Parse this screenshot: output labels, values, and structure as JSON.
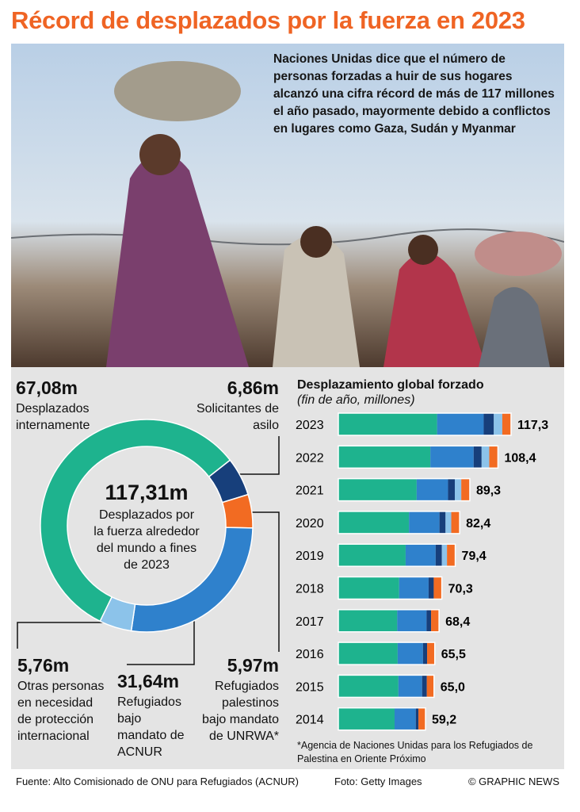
{
  "title": "Récord de desplazados por la fuerza en 2023",
  "intro": "Naciones Unidas dice que el número de personas forzadas a huir de sus hogares alcanzó una cifra récord de más de 117 millones el año pasado, mayormente debido a conflictos en lugares como Gaza, Sudán y Myanmar",
  "chart_data": [
    {
      "type": "donut",
      "center_label": "117,31m",
      "center_text": "Desplazados por la fuerza alrededor del mundo a fines de 2023",
      "categories": [
        "Desplazados internamente",
        "Solicitantes de asilo",
        "Refugiados palestinos bajo mandato de UNRWA*",
        "Refugiados bajo mandato de ACNUR",
        "Otras personas en necesidad de protección internacional"
      ],
      "values": [
        67.08,
        6.86,
        5.97,
        31.64,
        5.76
      ],
      "value_labels": [
        "67,08m",
        "6,86m",
        "5,97m",
        "31,64m",
        "5,76m"
      ],
      "colors": [
        "#1eb38e",
        "#173f7b",
        "#f26b22",
        "#2f81cc",
        "#8cc3ea"
      ]
    },
    {
      "type": "bar",
      "orientation": "horizontal",
      "stacked": true,
      "title": "Desplazamiento global forzado",
      "subtitle": "(fin de año, millones)",
      "categories": [
        "2023",
        "2022",
        "2021",
        "2020",
        "2019",
        "2018",
        "2017",
        "2016",
        "2015",
        "2014"
      ],
      "xlim": [
        0,
        120
      ],
      "series": [
        {
          "color": "#1eb38e",
          "values": [
            67.08,
            62.5,
            53.2,
            48.0,
            45.7,
            41.3,
            40.0,
            40.3,
            40.8,
            38.2
          ]
        },
        {
          "color": "#2f81cc",
          "values": [
            31.64,
            29.4,
            21.3,
            20.7,
            20.4,
            20.0,
            19.9,
            17.2,
            16.1,
            14.4
          ]
        },
        {
          "color": "#173f7b",
          "values": [
            6.86,
            5.4,
            4.6,
            4.1,
            4.2,
            3.5,
            3.1,
            2.8,
            3.2,
            1.8
          ]
        },
        {
          "color": "#8cc3ea",
          "values": [
            5.76,
            5.2,
            4.4,
            3.9,
            3.5,
            0,
            0,
            0,
            0,
            0
          ]
        },
        {
          "color": "#f26b22",
          "values": [
            5.97,
            5.9,
            5.8,
            5.7,
            5.6,
            5.5,
            5.4,
            5.2,
            4.9,
            4.8
          ]
        }
      ],
      "totals": [
        117.3,
        108.4,
        89.3,
        82.4,
        79.4,
        70.3,
        68.4,
        65.5,
        65.0,
        59.2
      ],
      "value_labels": [
        "117,3",
        "108,4",
        "89,3",
        "82,4",
        "79,4",
        "70,3",
        "68,4",
        "65,5",
        "65,0",
        "59,2"
      ],
      "footnote": "*Agencia de Naciones Unidas para los Refugiados de Palestina en Oriente Próximo"
    }
  ],
  "footer": {
    "source": "Fuente: Alto Comisionado de ONU para Refugiados (ACNUR)",
    "photo": "Foto: Getty Images",
    "credit": "© GRAPHIC NEWS"
  }
}
